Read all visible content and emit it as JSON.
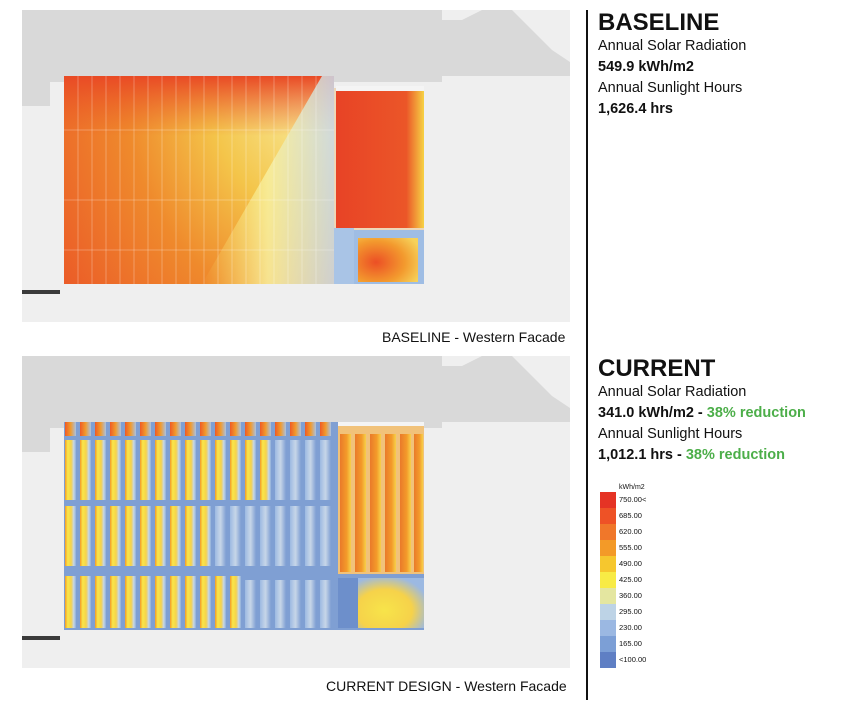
{
  "baseline": {
    "caption": "BASELINE - Western Facade",
    "title": "BASELINE",
    "radiation_label": "Annual Solar Radiation",
    "radiation_value": "549.9 kWh/m2",
    "sunlight_label": "Annual Sunlight Hours",
    "sunlight_value": "1,626.4 hrs"
  },
  "current": {
    "caption": "CURRENT DESIGN - Western Facade",
    "title": "CURRENT",
    "radiation_label": "Annual Solar Radiation",
    "radiation_value": "341.0 kWh/m2 - ",
    "radiation_reduction": "38% reduction",
    "sunlight_label": "Annual Sunlight Hours",
    "sunlight_value": "1,012.1 hrs - ",
    "sunlight_reduction": "38% reduction"
  },
  "legend": {
    "unit": "kWh/m2",
    "labels": [
      "750.00<",
      "685.00",
      "620.00",
      "555.00",
      "490.00",
      "425.00",
      "360.00",
      "295.00",
      "230.00",
      "165.00",
      "<100.00"
    ],
    "colors": [
      "#e53325",
      "#ee5226",
      "#f0772a",
      "#f39a28",
      "#f6c72e",
      "#f8eb45",
      "#e4e6a0",
      "#bdd3e6",
      "#9bb8e2",
      "#7c9fd6",
      "#5f7fc4"
    ]
  }
}
